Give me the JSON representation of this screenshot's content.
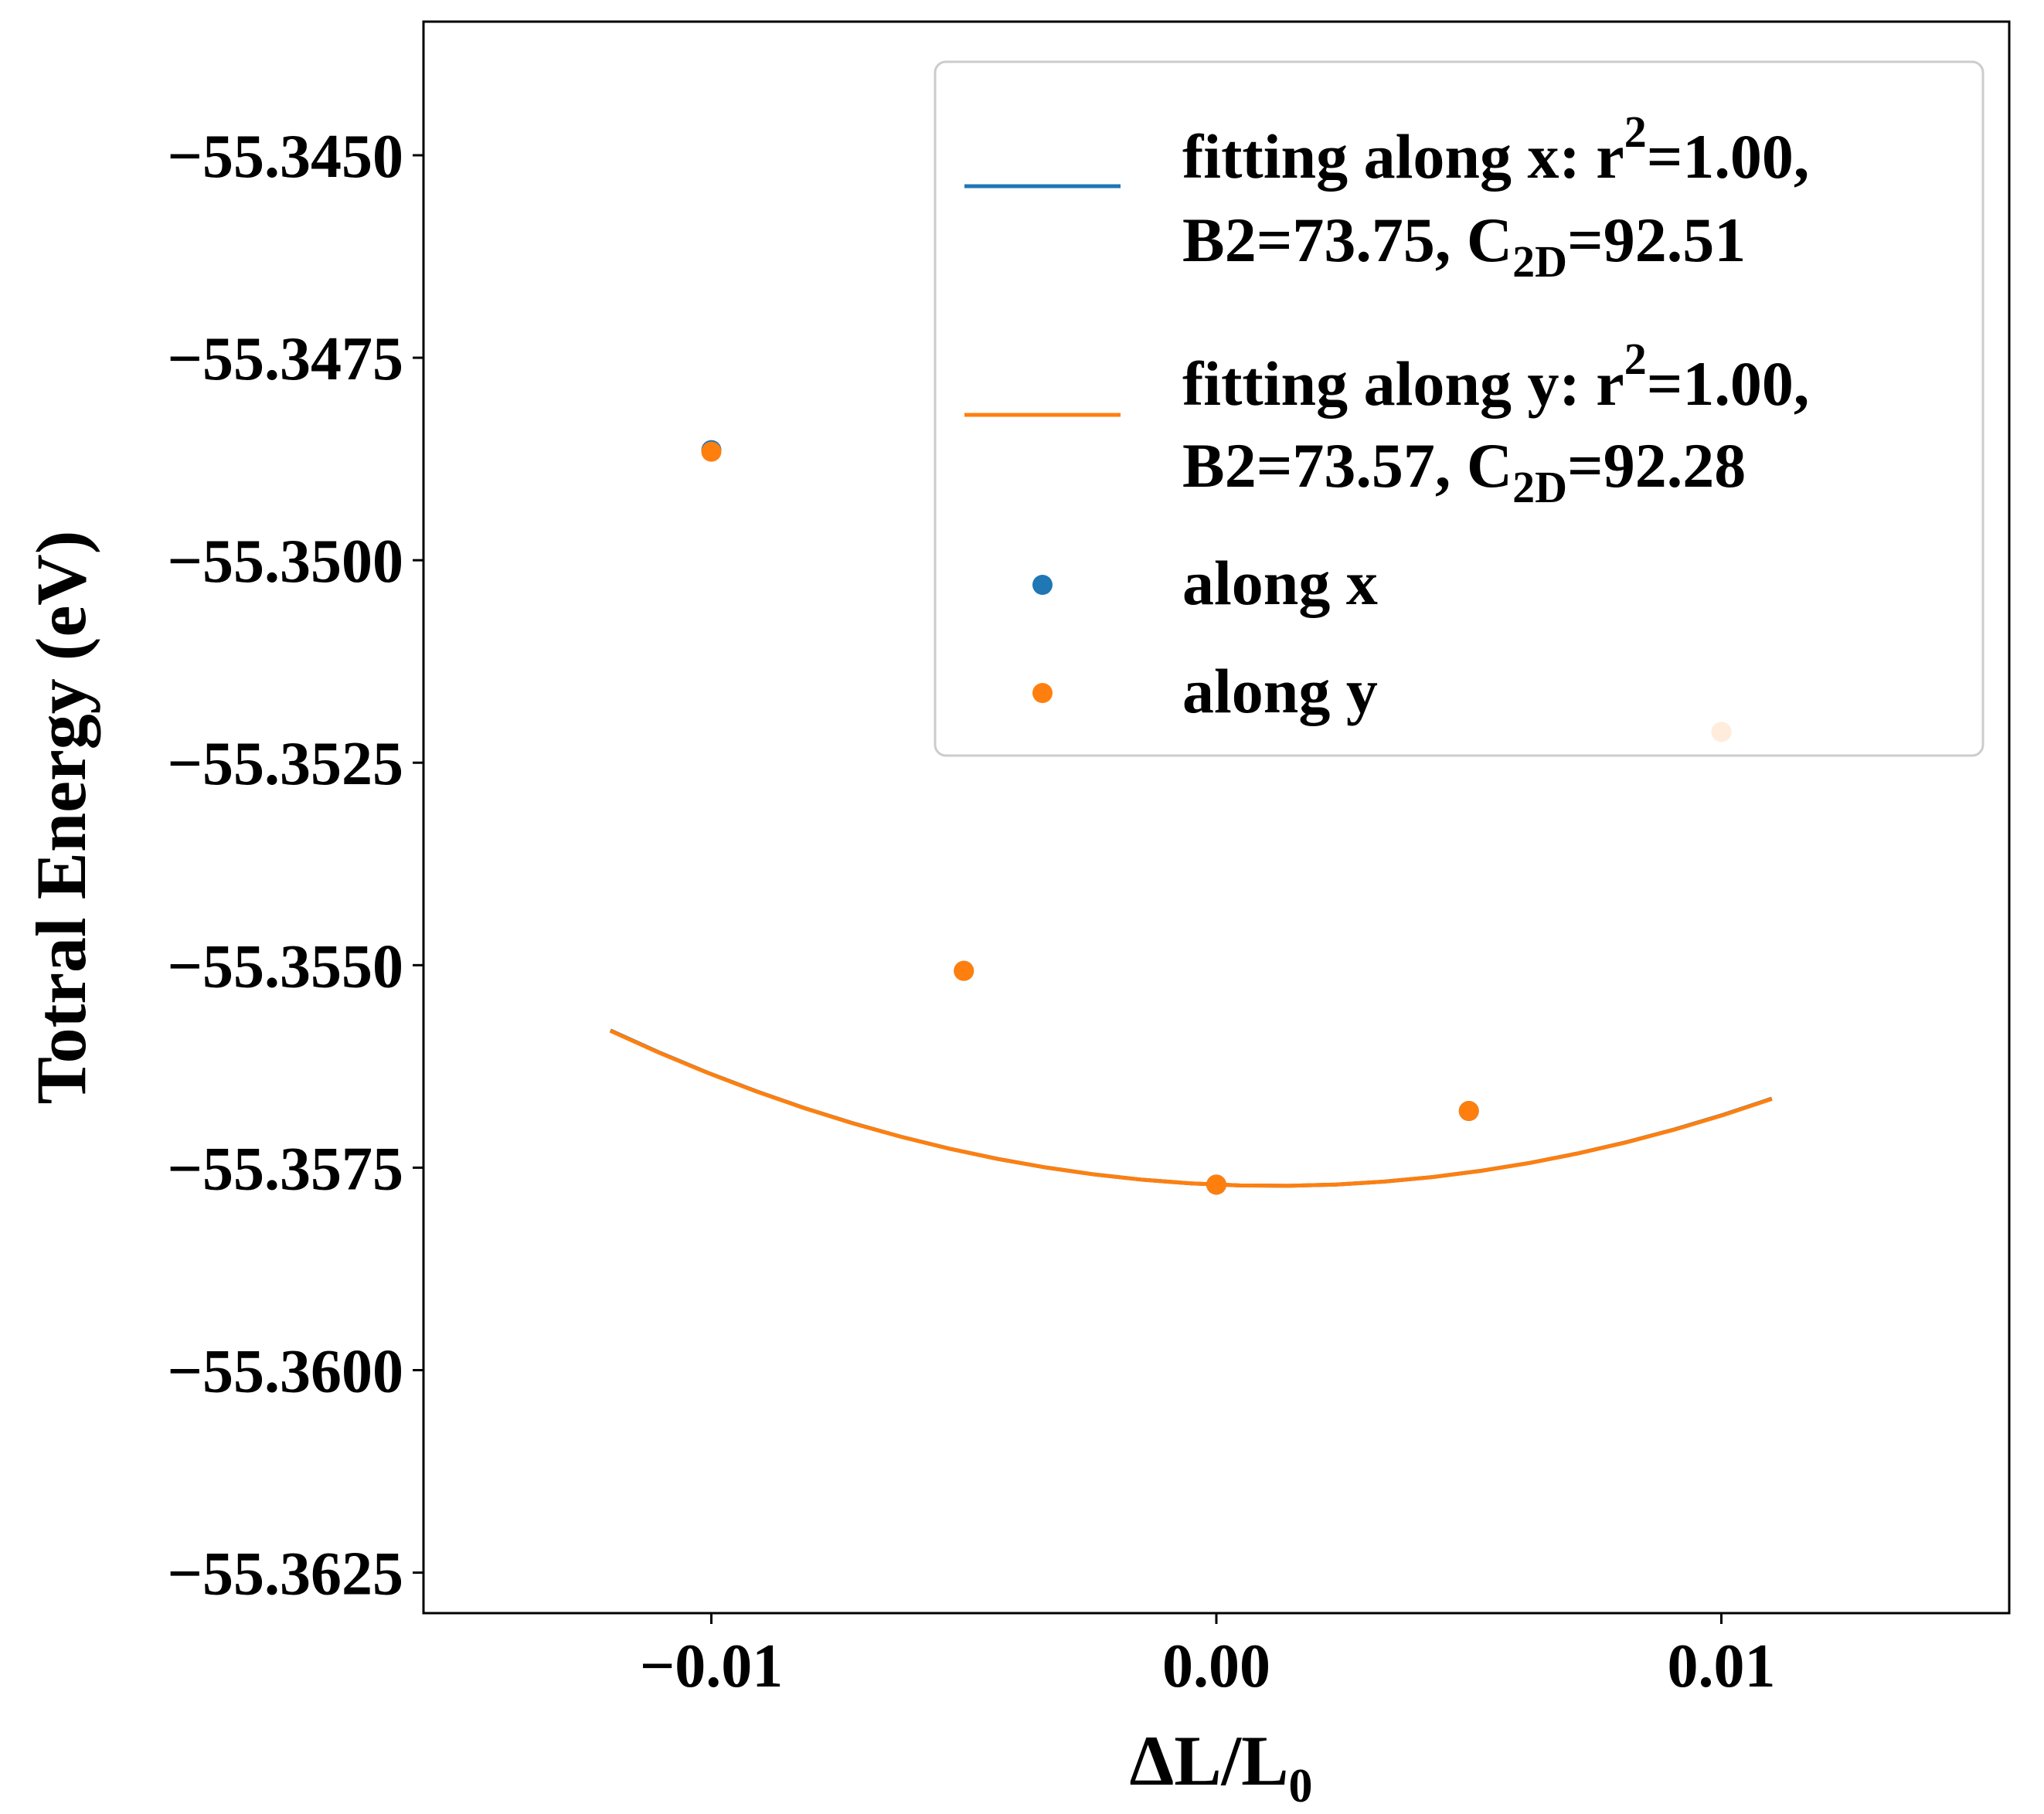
{
  "chart_data": {
    "type": "scatter",
    "xlabel": "ΔL/L",
    "xlabel_sub": "0",
    "ylabel": "Totral Energy (eV)",
    "xlim": [
      -0.0157,
      0.0157
    ],
    "ylim": [
      -55.363,
      -55.34335
    ],
    "x_ticks": [
      -0.01,
      0.0,
      0.01
    ],
    "x_tick_labels": [
      "−0.01",
      "0.00",
      "0.01"
    ],
    "y_ticks": [
      -55.345,
      -55.3475,
      -55.35,
      -55.3525,
      -55.355,
      -55.3575,
      -55.36,
      -55.3625
    ],
    "y_tick_labels": [
      "−55.3450",
      "−55.3475",
      "−55.3500",
      "−55.3525",
      "−55.3550",
      "−55.3575",
      "−55.3600",
      "−55.3625"
    ],
    "grid": false,
    "legend_position": "top-right",
    "colors": {
      "x": "#1f77b4",
      "y": "#ff7f0e"
    },
    "fit_x_range": [
      -0.012,
      0.011
    ],
    "series": [
      {
        "key": "fit_x",
        "kind": "line",
        "color": "#1f77b4",
        "fit": {
          "c0": -55.35771,
          "c1": -0.0255,
          "c2": 11.1
        },
        "legend": {
          "line1": "fitting along x: r",
          "line1_sup": "2",
          "line1_tail": "=1.00,",
          "line2_a": "B2=73.75, C",
          "line2_sub": "2D",
          "line2_b": "=92.51"
        }
      },
      {
        "key": "fit_y",
        "kind": "line",
        "color": "#ff7f0e",
        "fit": {
          "c0": -55.35771,
          "c1": -0.0255,
          "c2": 11.07
        },
        "legend": {
          "line1": "fitting along y: r",
          "line1_sup": "2",
          "line1_tail": "=1.00,",
          "line2_a": "B2=73.57, C",
          "line2_sub": "2D",
          "line2_b": "=92.28"
        }
      },
      {
        "key": "pts_x",
        "kind": "scatter",
        "name": "along x",
        "color": "#1f77b4",
        "x": [
          -0.01,
          -0.005,
          0.0,
          0.005,
          0.01
        ],
        "y": [
          -55.34864,
          -55.35507,
          -55.35771,
          -55.3568,
          -55.35212
        ]
      },
      {
        "key": "pts_y",
        "kind": "scatter",
        "name": "along y",
        "color": "#ff7f0e",
        "x": [
          -0.01,
          -0.005,
          0.0,
          0.005,
          0.01
        ],
        "y": [
          -55.34866,
          -55.35507,
          -55.35771,
          -55.3568,
          -55.35212
        ]
      }
    ]
  }
}
